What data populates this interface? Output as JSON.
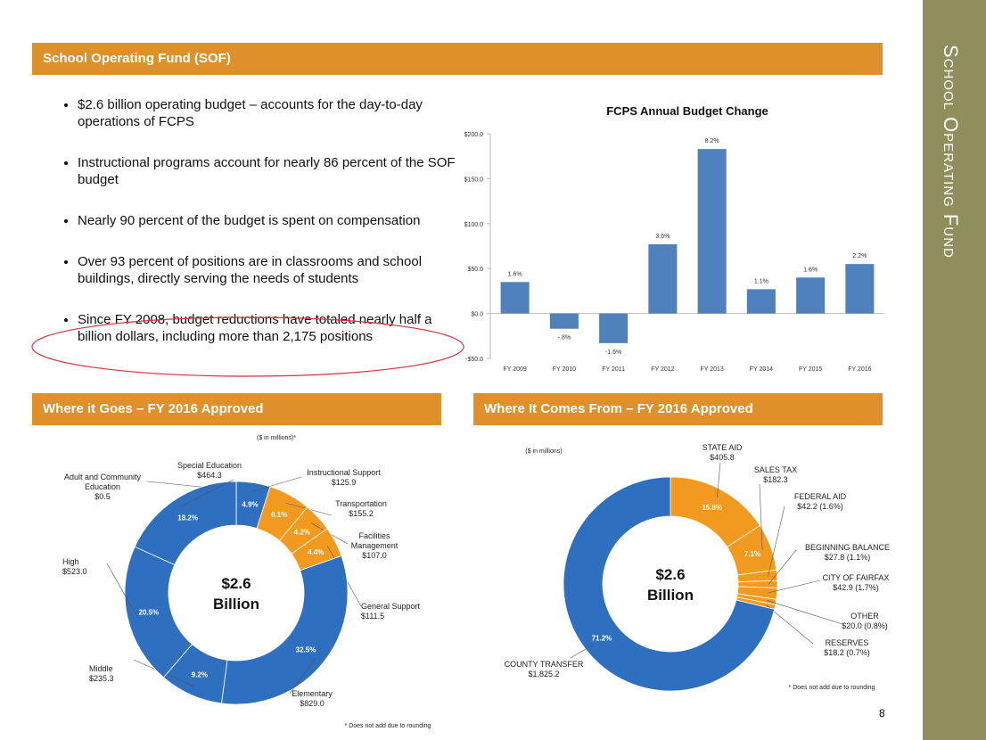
{
  "slide": {
    "title": "School Operating Fund (SOF)",
    "side_title": "School Operating Fund",
    "page_number": "8",
    "bullets": [
      "$2.6 billion operating budget – accounts for the day-to-day operations of FCPS",
      "Instructional programs account for nearly 86 percent of the SOF budget",
      "Nearly 90 percent of the budget is spent on compensation",
      "Over 93 percent of positions are in classrooms and school buildings, directly serving the needs of students",
      "Since FY 2008, budget reductions have totaled nearly half a billion dollars, including more than 2,175 positions"
    ]
  },
  "chart_data": [
    {
      "type": "bar",
      "title": "FCPS Annual Budget Change",
      "color": "#4f81bd",
      "categories": [
        "FY 2009",
        "FY 2010",
        "FY 2011",
        "FY 2012",
        "FY 2013",
        "FY 2014",
        "FY 2015",
        "FY 2016"
      ],
      "values": [
        35,
        -17,
        -33,
        77,
        183,
        27,
        40,
        55
      ],
      "annotations": [
        "1.6%",
        "-.8%",
        "-1.6%",
        "3.6%",
        "8.2%",
        "1.1%",
        "1.6%",
        "2.2%"
      ],
      "ylim": [
        -50,
        200
      ],
      "yticks": [
        {
          "value": -50,
          "label": "-$50.0"
        },
        {
          "value": 0,
          "label": "$0.0"
        },
        {
          "value": 50,
          "label": "$50.0"
        },
        {
          "value": 100,
          "label": "$100.0"
        },
        {
          "value": 150,
          "label": "$150.0"
        },
        {
          "value": 200,
          "label": "$200.0"
        }
      ]
    },
    {
      "type": "donut",
      "title": "Where it Goes – FY 2016 Approved",
      "note": "($ in millions)*",
      "footnote": "* Does not add due to rounding",
      "center_value": "$2.6",
      "center_unit": "Billion",
      "categories": [
        "Adult and Community Education",
        "Instructional Support",
        "Transportation",
        "Facilities Management",
        "General Support",
        "Elementary",
        "Middle",
        "High",
        "Special Education"
      ],
      "amounts": [
        "$0.5",
        "$125.9",
        "$155.2",
        "$107.0",
        "$111.5",
        "$829.0",
        "$235.3",
        "$523.0",
        "$464.3"
      ],
      "values": [
        0.02,
        4.9,
        6.1,
        4.2,
        4.4,
        32.5,
        9.2,
        20.5,
        18.2
      ],
      "value_labels": [
        null,
        "4.9%",
        "6.1%",
        "4.2%",
        "4.4%",
        "32.5%",
        "9.2%",
        "20.5%",
        "18.2%"
      ],
      "colors": [
        "#2e6fc0",
        "#2e6fc0",
        "#f29a1f",
        "#f29a1f",
        "#f29a1f",
        "#2e6fc0",
        "#2e6fc0",
        "#2e6fc0",
        "#2e6fc0"
      ]
    },
    {
      "type": "donut",
      "title": "Where It Comes From – FY 2016 Approved",
      "note": "($ in millions)",
      "footnote": "* Does not add due to rounding",
      "center_value": "$2.6",
      "center_unit": "Billion",
      "categories": [
        "STATE AID",
        "SALES TAX",
        "FEDERAL AID",
        "BEGINNING BALANCE",
        "CITY OF FAIRFAX",
        "OTHER",
        "RESERVES",
        "COUNTY TRANSFER"
      ],
      "amounts": [
        "$405.8",
        "$182.3",
        "$42.2 (1.6%)",
        "$27.8 (1.1%)",
        "$42.9 (1.7%)",
        "$20.0 (0.8%)",
        "$18.2 (0.7%)",
        "$1,825.2"
      ],
      "values": [
        15.8,
        7.1,
        1.6,
        1.1,
        1.7,
        0.8,
        0.7,
        71.2
      ],
      "value_labels": [
        "15.8%",
        "7.1%",
        null,
        null,
        null,
        null,
        null,
        "71.2%"
      ],
      "colors": [
        "#f29a1f",
        "#f29a1f",
        "#f29a1f",
        "#f29a1f",
        "#f29a1f",
        "#f29a1f",
        "#f29a1f",
        "#2e6fc0"
      ]
    }
  ]
}
